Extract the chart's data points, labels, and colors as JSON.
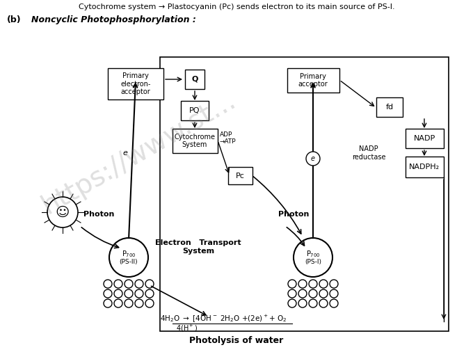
{
  "title_line1": "Cytochrome system → Plastocyanin (Pc) sends electron to its main source of PS-I.",
  "subtitle": "(b)   Noncyclic Photophosphorylation :",
  "background_color": "#ffffff",
  "text_color": "#000000",
  "watermark": "https://www.st...",
  "bottom_label": "Photolysis of water",
  "electron_transport_label": "Electron   Transport\nSystem",
  "photolysis_formula": "4H₂O → [4OH⁻ 2H₂O +(2e)⁺+ O₂",
  "photolysis_formula2": "4(H⁺)",
  "ps1_label": "Pₙ₀\n(PS-I)",
  "ps2_label": "Pₙ₀\n(PS-II)",
  "photon_label": "Photon"
}
